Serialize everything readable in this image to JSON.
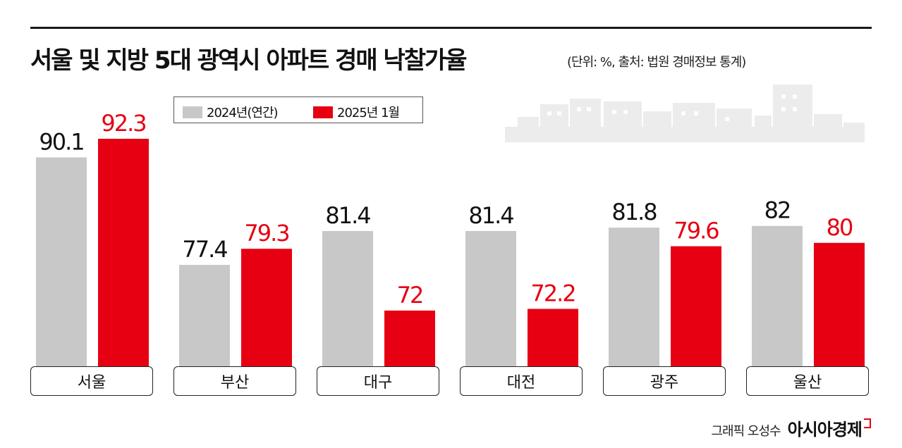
{
  "title": "서울 및 지방 5대 광역시 아파트 경매 낙찰가율",
  "subtitle": "(단위: %, 출처: 법원 경매정보 통계)",
  "credit": "그래픽 오성수",
  "brand": "아시아경제",
  "colors": {
    "series_2024": "#c8c8c8",
    "series_2025": "#e60012",
    "value_2024": "#111111",
    "value_2025": "#e60012"
  },
  "legend": {
    "series_2024": "2024년(연간)",
    "series_2025": "2025년 1월"
  },
  "chart_data": {
    "type": "bar",
    "title": "서울 및 지방 5대 광역시 아파트 경매 낙찰가율",
    "categories": [
      "서울",
      "부산",
      "대구",
      "대전",
      "광주",
      "울산"
    ],
    "series": [
      {
        "name": "2024년(연간)",
        "values": [
          90.1,
          77.4,
          81.4,
          81.4,
          81.8,
          82
        ]
      },
      {
        "name": "2025년 1월",
        "values": [
          92.3,
          79.3,
          72,
          72.2,
          79.6,
          80
        ]
      }
    ],
    "value_labels": [
      [
        "90.1",
        "77.4",
        "81.4",
        "81.4",
        "81.8",
        "82"
      ],
      [
        "92.3",
        "79.3",
        "72",
        "72.2",
        "79.6",
        "80"
      ]
    ],
    "legend_position": "top-left"
  }
}
